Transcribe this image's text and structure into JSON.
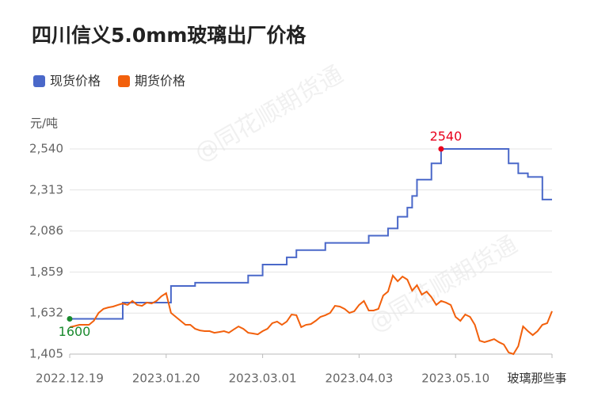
{
  "chart_data": {
    "type": "line",
    "title": "四川信义5.0mm玻璃出厂价格",
    "y_unit": "元/吨",
    "watermarks": [
      "@同花顺期货通",
      "@同花顺期货通",
      "玻璃那些事"
    ],
    "x": [
      0,
      1,
      2,
      3,
      4,
      5,
      6,
      7,
      8,
      9,
      10,
      11,
      12,
      13,
      14,
      15,
      16,
      17,
      18,
      19,
      20,
      21,
      22,
      23,
      24,
      25,
      26,
      27,
      28,
      29,
      30,
      31,
      32,
      33,
      34,
      35,
      36,
      37,
      38,
      39,
      40,
      41,
      42,
      43,
      44,
      45,
      46,
      47,
      48,
      49,
      50,
      51,
      52,
      53,
      54,
      55,
      56,
      57,
      58,
      59,
      60,
      61,
      62,
      63,
      64,
      65,
      66,
      67,
      68,
      69,
      70,
      71,
      72,
      73,
      74,
      75,
      76,
      77,
      78,
      79,
      80,
      81,
      82,
      83,
      84,
      85,
      86,
      87,
      88,
      89,
      90,
      91,
      92,
      93,
      94,
      95,
      96,
      97,
      98,
      99,
      100
    ],
    "xlim": [
      0,
      100
    ],
    "xticks": [
      {
        "value": 0,
        "label": "2022.12.19"
      },
      {
        "value": 20,
        "label": "2023.01.20"
      },
      {
        "value": 40,
        "label": "2023.03.01"
      },
      {
        "value": 60,
        "label": "2023.04.03"
      },
      {
        "value": 80,
        "label": "2023.05.10"
      },
      {
        "value": 100,
        "label": ""
      }
    ],
    "ylim": [
      1405,
      2540
    ],
    "yticks": [
      {
        "value": 1405,
        "label": "1,405"
      },
      {
        "value": 1632,
        "label": "1,632"
      },
      {
        "value": 1859,
        "label": "1,859"
      },
      {
        "value": 2086,
        "label": "2,086"
      },
      {
        "value": 2313,
        "label": "2,313"
      },
      {
        "value": 2540,
        "label": "2,540"
      }
    ],
    "grid": true,
    "series": [
      {
        "name": "现货价格",
        "color": "#4a68c9",
        "step": true,
        "values": [
          1600,
          1600,
          1600,
          1600,
          1600,
          1600,
          1600,
          1600,
          1600,
          1600,
          1600,
          1690,
          1690,
          1690,
          1690,
          1690,
          1690,
          1690,
          1690,
          1690,
          1690,
          1782,
          1782,
          1782,
          1782,
          1782,
          1800,
          1800,
          1800,
          1800,
          1800,
          1800,
          1800,
          1800,
          1800,
          1800,
          1800,
          1840,
          1840,
          1840,
          1900,
          1900,
          1900,
          1900,
          1900,
          1940,
          1940,
          1980,
          1980,
          1980,
          1980,
          1980,
          1980,
          2020,
          2020,
          2020,
          2020,
          2020,
          2020,
          2020,
          2020,
          2020,
          2060,
          2060,
          2060,
          2060,
          2100,
          2100,
          2165,
          2165,
          2215,
          2280,
          2370,
          2370,
          2370,
          2460,
          2460,
          2540,
          2540,
          2540,
          2540,
          2540,
          2540,
          2540,
          2540,
          2540,
          2540,
          2540,
          2540,
          2540,
          2540,
          2460,
          2460,
          2405,
          2405,
          2385,
          2385,
          2385,
          2260,
          2260,
          2260
        ]
      },
      {
        "name": "期货价格",
        "color": "#f2600c",
        "values": [
          1554,
          1560,
          1567,
          1567,
          1567,
          1589,
          1633,
          1655,
          1663,
          1668,
          1677,
          1685,
          1677,
          1699,
          1677,
          1672,
          1690,
          1685,
          1699,
          1725,
          1742,
          1633,
          1611,
          1589,
          1567,
          1567,
          1545,
          1536,
          1532,
          1532,
          1523,
          1527,
          1532,
          1523,
          1541,
          1558,
          1545,
          1523,
          1519,
          1514,
          1532,
          1545,
          1576,
          1585,
          1567,
          1585,
          1624,
          1620,
          1554,
          1567,
          1571,
          1589,
          1611,
          1620,
          1633,
          1672,
          1668,
          1655,
          1633,
          1642,
          1677,
          1699,
          1646,
          1646,
          1655,
          1729,
          1751,
          1839,
          1808,
          1834,
          1817,
          1756,
          1786,
          1734,
          1751,
          1720,
          1677,
          1699,
          1690,
          1677,
          1611,
          1589,
          1624,
          1611,
          1567,
          1479,
          1471,
          1479,
          1488,
          1471,
          1458,
          1414,
          1405,
          1449,
          1558,
          1532,
          1510,
          1532,
          1567,
          1576,
          1642
        ]
      }
    ],
    "annotations": [
      {
        "x": 77,
        "y": 2540,
        "color": "#e8001c"
      },
      {
        "x": 0,
        "y": 1600,
        "color": "#1a8a2e"
      }
    ]
  }
}
